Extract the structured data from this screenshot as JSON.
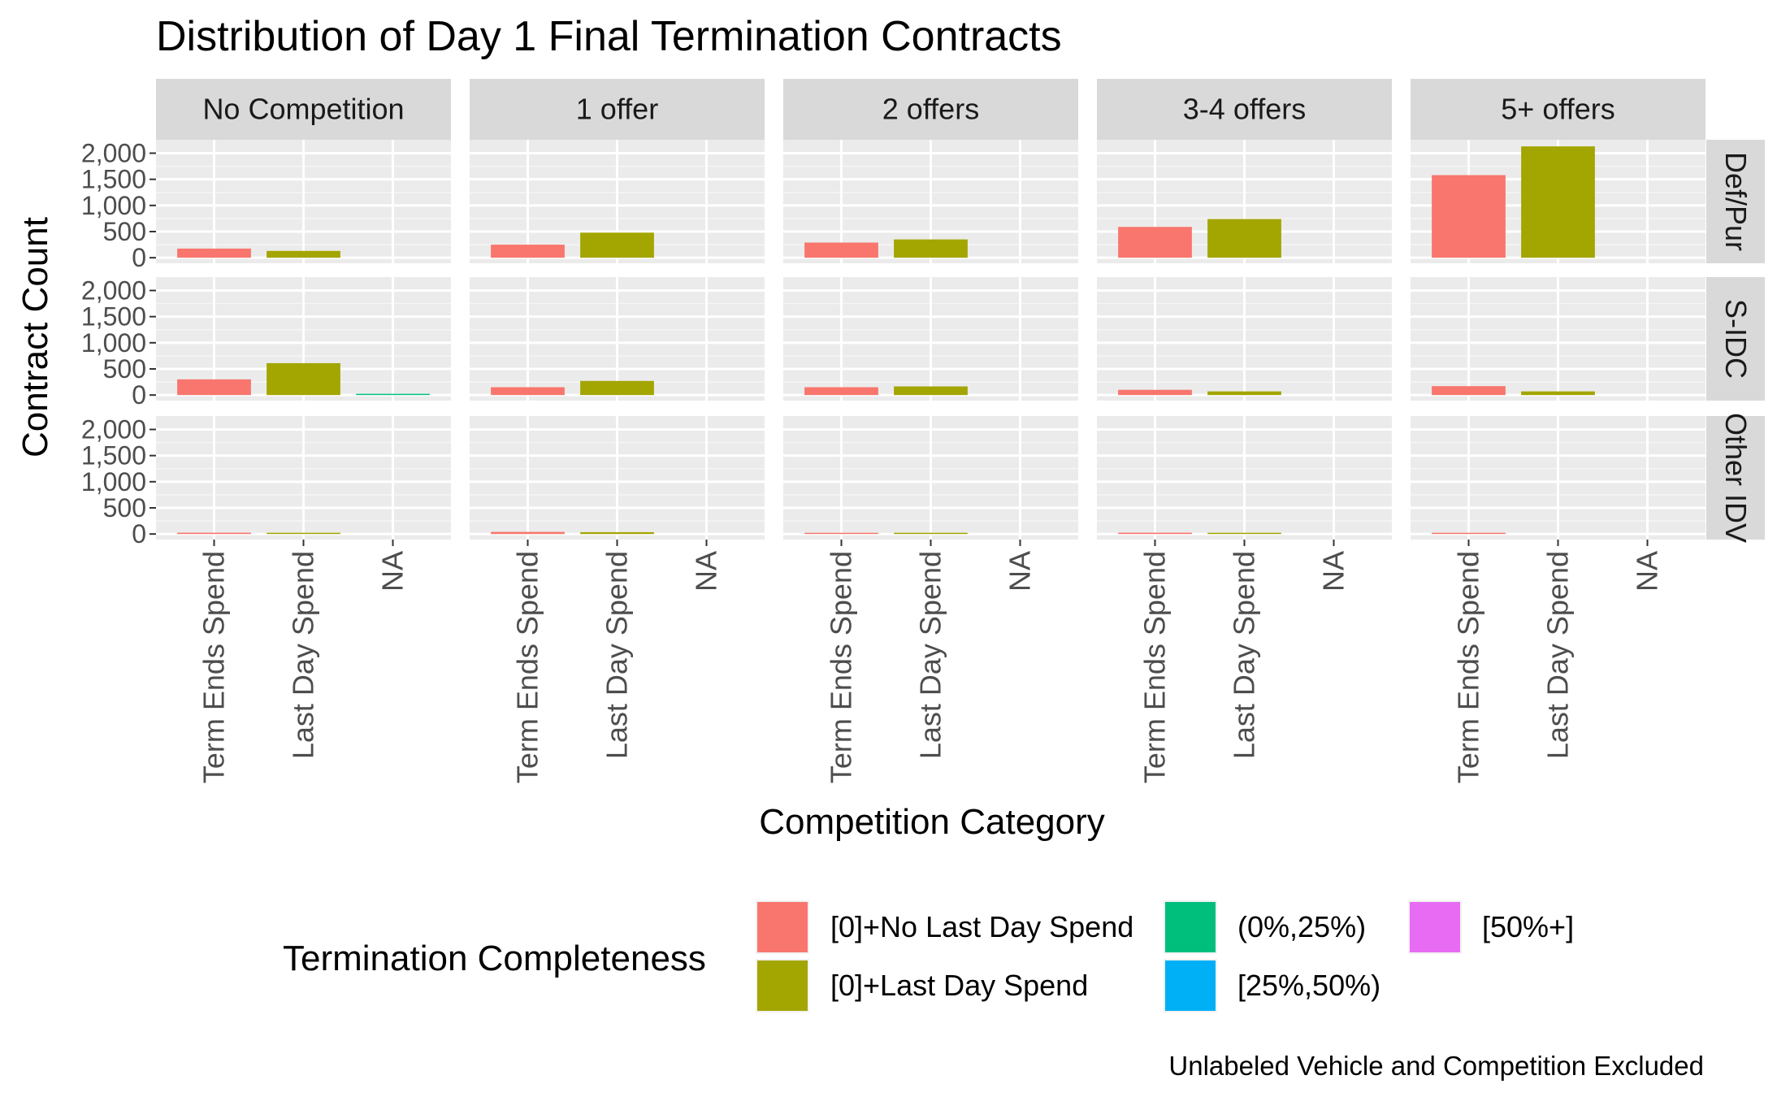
{
  "chart_data": {
    "type": "bar",
    "title": "Distribution of Day 1 Final Termination Contracts",
    "xlabel": "Competition Category",
    "ylabel": "Contract Count",
    "caption": "Unlabeled Vehicle and Competition Excluded",
    "ylim": [
      0,
      2150
    ],
    "y_ticks": [
      0,
      500,
      1000,
      1500,
      2000
    ],
    "y_tick_labels": [
      "0",
      "500",
      "1,000",
      "1,500",
      "2,000"
    ],
    "categories": [
      "Term Ends Spend",
      "Last Day Spend",
      "NA"
    ],
    "column_facets": [
      "No Competition",
      "1 offer",
      "2 offers",
      "3-4 offers",
      "5+ offers"
    ],
    "row_facets": [
      "Def/Pur",
      "S-IDC",
      "Other IDV"
    ],
    "legend": {
      "title": "Termination Completeness",
      "position": "bottom",
      "entries": [
        {
          "name": "[0]+No Last Day Spend",
          "color": "#F8766D"
        },
        {
          "name": "[0]+Last Day Spend",
          "color": "#A3A500"
        },
        {
          "name": "(0%,25%)",
          "color": "#00BF7D"
        },
        {
          "name": "[25%,50%)",
          "color": "#00B0F6"
        },
        {
          "name": "[50%+]",
          "color": "#E76BF3"
        }
      ]
    },
    "bars": [
      {
        "row": 0,
        "col": 0,
        "category": 0,
        "series": 0,
        "value": 175
      },
      {
        "row": 0,
        "col": 0,
        "category": 1,
        "series": 1,
        "value": 130
      },
      {
        "row": 0,
        "col": 1,
        "category": 0,
        "series": 0,
        "value": 250
      },
      {
        "row": 0,
        "col": 1,
        "category": 1,
        "series": 1,
        "value": 480
      },
      {
        "row": 0,
        "col": 2,
        "category": 0,
        "series": 0,
        "value": 290
      },
      {
        "row": 0,
        "col": 2,
        "category": 1,
        "series": 1,
        "value": 350
      },
      {
        "row": 0,
        "col": 3,
        "category": 0,
        "series": 0,
        "value": 590
      },
      {
        "row": 0,
        "col": 3,
        "category": 1,
        "series": 1,
        "value": 740
      },
      {
        "row": 0,
        "col": 4,
        "category": 0,
        "series": 0,
        "value": 1580
      },
      {
        "row": 0,
        "col": 4,
        "category": 1,
        "series": 1,
        "value": 2130
      },
      {
        "row": 1,
        "col": 0,
        "category": 0,
        "series": 0,
        "value": 300
      },
      {
        "row": 1,
        "col": 0,
        "category": 1,
        "series": 1,
        "value": 610
      },
      {
        "row": 1,
        "col": 0,
        "category": 2,
        "series": 2,
        "value": 10
      },
      {
        "row": 1,
        "col": 1,
        "category": 0,
        "series": 0,
        "value": 150
      },
      {
        "row": 1,
        "col": 1,
        "category": 1,
        "series": 1,
        "value": 270
      },
      {
        "row": 1,
        "col": 2,
        "category": 0,
        "series": 0,
        "value": 150
      },
      {
        "row": 1,
        "col": 2,
        "category": 1,
        "series": 1,
        "value": 165
      },
      {
        "row": 1,
        "col": 3,
        "category": 0,
        "series": 0,
        "value": 100
      },
      {
        "row": 1,
        "col": 3,
        "category": 1,
        "series": 1,
        "value": 70
      },
      {
        "row": 1,
        "col": 4,
        "category": 0,
        "series": 0,
        "value": 170
      },
      {
        "row": 1,
        "col": 4,
        "category": 1,
        "series": 1,
        "value": 70
      },
      {
        "row": 2,
        "col": 0,
        "category": 0,
        "series": 0,
        "value": 25
      },
      {
        "row": 2,
        "col": 0,
        "category": 1,
        "series": 1,
        "value": 15
      },
      {
        "row": 2,
        "col": 1,
        "category": 0,
        "series": 0,
        "value": 40
      },
      {
        "row": 2,
        "col": 1,
        "category": 1,
        "series": 1,
        "value": 35
      },
      {
        "row": 2,
        "col": 2,
        "category": 0,
        "series": 0,
        "value": 20
      },
      {
        "row": 2,
        "col": 2,
        "category": 1,
        "series": 1,
        "value": 12
      },
      {
        "row": 2,
        "col": 3,
        "category": 0,
        "series": 0,
        "value": 25
      },
      {
        "row": 2,
        "col": 3,
        "category": 1,
        "series": 1,
        "value": 15
      },
      {
        "row": 2,
        "col": 4,
        "category": 0,
        "series": 0,
        "value": 10
      }
    ],
    "grid": true
  }
}
